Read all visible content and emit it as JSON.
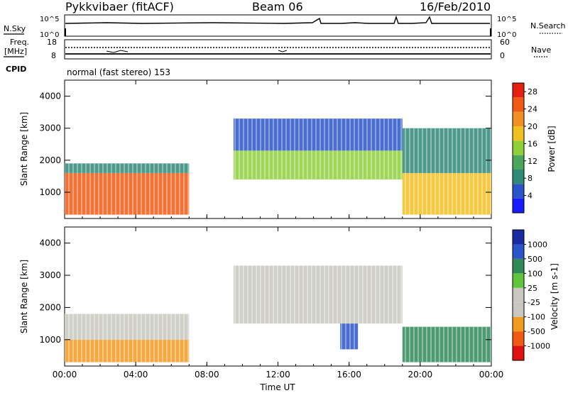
{
  "header": {
    "radar": "Pykkvibaer (fitACF)",
    "beam": "Beam 06",
    "date": "16/Feb/2010"
  },
  "status": {
    "nsky_label": "N.Sky",
    "nsky_ticks": [
      "10^5",
      "10^0"
    ],
    "nsearch_label": "N.Search",
    "nsearch_ticks": [
      "10^5",
      "10^0"
    ],
    "freq_label": "Freq.",
    "freq_unit": "[MHz]",
    "freq_ticks": [
      "18",
      "8"
    ],
    "nave_label": "Nave",
    "nave_ticks": [
      "60",
      "0"
    ],
    "cpid_label": "CPID",
    "cpid_text": "normal (fast stereo) 153"
  },
  "colors": {
    "power": [
      "#1a1aff",
      "#2a55c8",
      "#2f8a78",
      "#4aa65a",
      "#8fcf3a",
      "#f0c020",
      "#f09020",
      "#f05a15",
      "#e62010"
    ],
    "velocity": [
      "#e01010",
      "#f05a15",
      "#f09a20",
      "#c8c8c0",
      "#c8c8c0",
      "#5fc53a",
      "#2f8a58",
      "#2a55c8",
      "#1a2aa0"
    ]
  },
  "chart_data": [
    {
      "type": "heatmap",
      "name": "power",
      "ylabel": "Slant Range [km]",
      "xlabel": "",
      "x_ticks": [
        "00:00",
        "04:00",
        "08:00",
        "12:00",
        "16:00",
        "20:00",
        "00:00"
      ],
      "y_ticks": [
        "1000",
        "2000",
        "3000",
        "4000"
      ],
      "xlim_hours": [
        0,
        24
      ],
      "ylim_km": [
        180,
        4500
      ],
      "colorbar_label": "Power [dB]",
      "colorbar_ticks": [
        "4",
        "8",
        "12",
        "16",
        "20",
        "24",
        "28"
      ],
      "colorbar_range": [
        0,
        30
      ],
      "regions": [
        {
          "t0": 0.0,
          "t1": 7.0,
          "r0": 300,
          "r1": 1600,
          "value": 24
        },
        {
          "t0": 0.0,
          "t1": 7.0,
          "r0": 1600,
          "r1": 1900,
          "value": 8
        },
        {
          "t0": 9.5,
          "t1": 19.0,
          "r0": 1400,
          "r1": 2300,
          "value": 16
        },
        {
          "t0": 9.5,
          "t1": 19.0,
          "r0": 2300,
          "r1": 3300,
          "value": 6
        },
        {
          "t0": 19.0,
          "t1": 24.0,
          "r0": 300,
          "r1": 1600,
          "value": 18
        },
        {
          "t0": 19.0,
          "t1": 24.0,
          "r0": 1600,
          "r1": 3000,
          "value": 8
        }
      ]
    },
    {
      "type": "heatmap",
      "name": "velocity",
      "ylabel": "Slant Range [km]",
      "xlabel": "Time UT",
      "x_ticks": [
        "00:00",
        "04:00",
        "08:00",
        "12:00",
        "16:00",
        "20:00",
        "00:00"
      ],
      "y_ticks": [
        "1000",
        "2000",
        "3000",
        "4000"
      ],
      "xlim_hours": [
        0,
        24
      ],
      "ylim_km": [
        180,
        4500
      ],
      "colorbar_label": "Velocity [m s-1]",
      "colorbar_ticks": [
        "1000",
        "500",
        "100",
        "25",
        "-25",
        "-100",
        "-500",
        "-1000"
      ],
      "regions": [
        {
          "t0": 0.0,
          "t1": 7.0,
          "r0": 300,
          "r1": 1000,
          "value": -150
        },
        {
          "t0": 0.0,
          "t1": 7.0,
          "r0": 1000,
          "r1": 1800,
          "value": 0
        },
        {
          "t0": 9.5,
          "t1": 19.0,
          "r0": 1500,
          "r1": 3300,
          "value": 0
        },
        {
          "t0": 15.5,
          "t1": 16.5,
          "r0": 700,
          "r1": 1500,
          "value": 600
        },
        {
          "t0": 19.0,
          "t1": 24.0,
          "r0": 300,
          "r1": 1400,
          "value": 150
        }
      ]
    }
  ]
}
